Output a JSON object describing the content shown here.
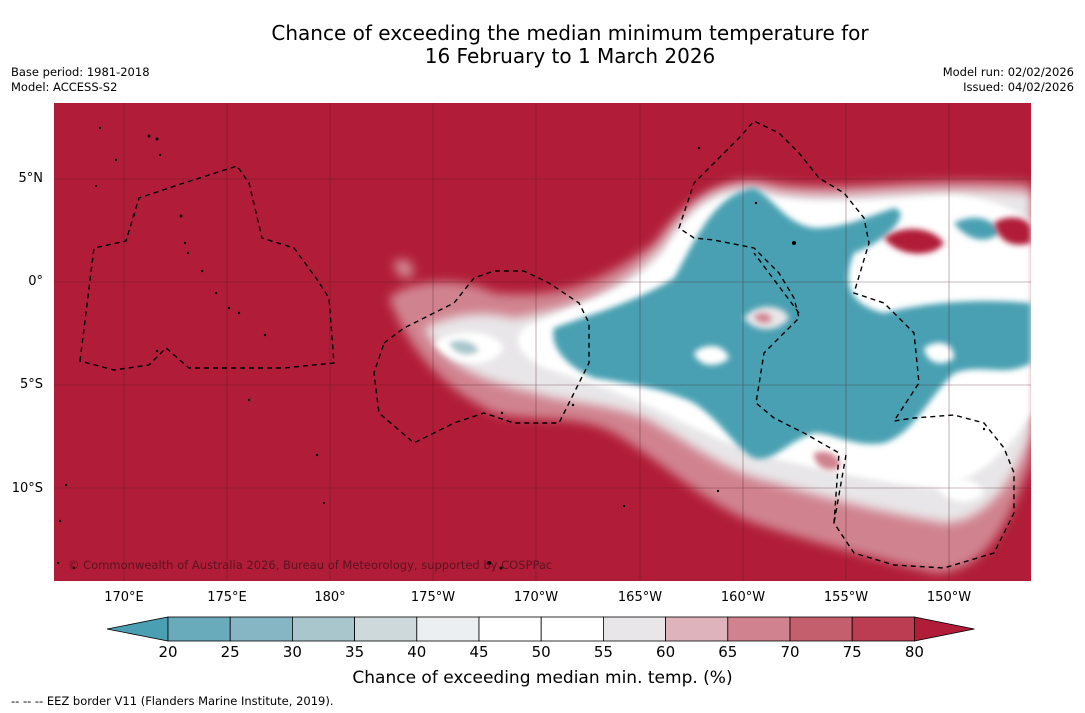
{
  "title": {
    "line1": "Chance of exceeding the median minimum temperature for",
    "line2": "16 February to 1 March 2026"
  },
  "meta_left": {
    "base_period": "Base period: 1981-2018",
    "model": "Model: ACCESS-S2"
  },
  "meta_right": {
    "model_run": "Model run: 02/02/2026",
    "issued": "Issued: 04/02/2026"
  },
  "map": {
    "lat_labels": [
      "5°N",
      "0°",
      "5°S",
      "10°S"
    ],
    "lon_labels": [
      "170°E",
      "175°E",
      "180°",
      "175°W",
      "170°W",
      "165°W",
      "160°W",
      "155°W",
      "150°W"
    ],
    "copyright": "© Commonwealth of Australia 2026, Bureau of Meteorology, supported by COSPPac",
    "background_color": "#b11d38"
  },
  "colorbar": {
    "ticks": [
      "20",
      "25",
      "30",
      "35",
      "40",
      "45",
      "50",
      "55",
      "60",
      "65",
      "70",
      "75",
      "80"
    ],
    "colors": [
      "#4aa0b2",
      "#6aabbb",
      "#86b6c3",
      "#a8c6cc",
      "#ced9dc",
      "#eceff1",
      "#ffffff",
      "#ffffff",
      "#e8e6e8",
      "#dfb3bb",
      "#d0838f",
      "#c45f6e",
      "#bc3d52",
      "#b11d38"
    ],
    "label": "Chance of exceeding median min. temp. (%)"
  },
  "footer": "--  --  -- EEZ border V11 (Flanders Marine Institute, 2019)."
}
